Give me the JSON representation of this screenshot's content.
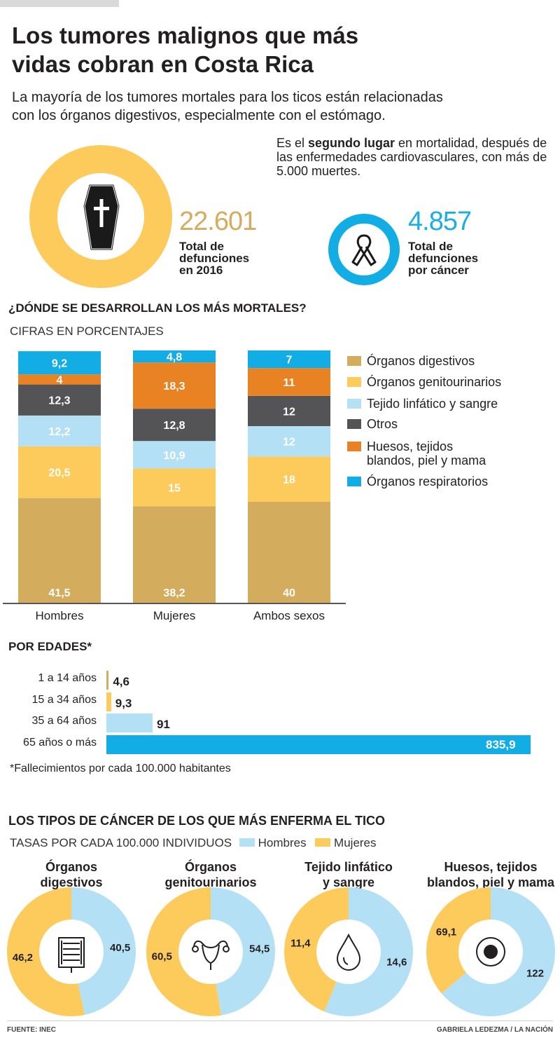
{
  "header": {
    "title_line1": "Los tumores malignos que más",
    "title_line2": "vidas cobran en Costa Rica",
    "subtitle_line1": "La mayoría de los tumores mortales para los ticos están relacionadas",
    "subtitle_line2": "con los órganos digestivos, especialmente con el estómago."
  },
  "summary": {
    "note_pre": "Es el ",
    "note_bold": "segundo lugar",
    "note_post": " en mortalidad, después de las enfermedades cardiovasculares, con más de 5.000 muertes.",
    "total_value": "22.601",
    "total_label_1": "Total de",
    "total_label_2": "defunciones",
    "total_label_3": "en 2016",
    "cancer_value": "4.857",
    "cancer_label_1": "Total de",
    "cancer_label_2": "defunciones",
    "cancer_label_3": "por cáncer",
    "coffin_icon": "coffin-cross-icon",
    "ribbon_icon": "awareness-ribbon-icon"
  },
  "colors": {
    "digestivos": "#d4ac5d",
    "genitourinarios": "#fdca5c",
    "linfatico": "#b4e0f5",
    "otros": "#545456",
    "huesos": "#e88223",
    "respiratorios": "#13ade6",
    "gold_text": "#d4ac5d",
    "blue_text": "#1aaee5"
  },
  "stacked": {
    "heading": "¿DÓNDE SE DESARROLLAN LOS MÁS MORTALES?",
    "subheading": "CIFRAS EN PORCENTAJES"
  },
  "ages": {
    "heading": "POR EDADES*",
    "footnote": "*Fallecimientos por cada 100.000 habitantes",
    "rows": [
      {
        "label": "1 a 14 años",
        "value": 4.6,
        "display": "4,6"
      },
      {
        "label": "15 a 34 años",
        "value": 9.3,
        "display": "9,3"
      },
      {
        "label": "35 a 64 años",
        "value": 91,
        "display": "91"
      },
      {
        "label": "65 años o más",
        "value": 835.9,
        "display": "835,9"
      }
    ]
  },
  "types": {
    "heading": "LOS TIPOS DE CÁNCER DE LOS QUE MÁS ENFERMA EL TICO",
    "subheading": "TASAS POR CADA 100.000 INDIVIDUOS",
    "legend_hombres": "Hombres",
    "legend_mujeres": "Mujeres"
  },
  "footer": {
    "source": "FUENTE: INEC",
    "credit": "GABRIELA LEDEZMA / LA NACIÓN"
  },
  "chart_data": [
    {
      "type": "stacked-bar",
      "title": "¿DÓNDE SE DESARROLLAN LOS MÁS MORTALES?",
      "unit": "CIFRAS EN PORCENTAJES",
      "categories": [
        "Hombres",
        "Mujeres",
        "Ambos sexos"
      ],
      "series": [
        {
          "key": "digestivos",
          "name": "Órganos digestivos",
          "values": [
            41.5,
            38.2,
            40
          ],
          "labels": [
            "41,5",
            "38,2",
            "40"
          ]
        },
        {
          "key": "genitourinarios",
          "name": "Órganos genitourinarios",
          "values": [
            20.5,
            15,
            18
          ],
          "labels": [
            "20,5",
            "15",
            "18"
          ]
        },
        {
          "key": "linfatico",
          "name": "Tejido linfático y sangre",
          "values": [
            12.2,
            10.9,
            12
          ],
          "labels": [
            "12,2",
            "10,9",
            "12"
          ]
        },
        {
          "key": "otros",
          "name": "Otros",
          "values": [
            12.3,
            12.8,
            12
          ],
          "labels": [
            "12,3",
            "12,8",
            "12"
          ]
        },
        {
          "key": "huesos",
          "name": "Huesos, tejidos blandos, piel y mama",
          "values": [
            4,
            18.3,
            11
          ],
          "labels": [
            "4",
            "18,3",
            "11"
          ]
        },
        {
          "key": "respiratorios",
          "name": "Órganos respiratorios",
          "values": [
            9.2,
            4.8,
            7
          ],
          "labels": [
            "9,2",
            "4,8",
            "7"
          ]
        }
      ],
      "legend_order": [
        "digestivos",
        "genitourinarios",
        "linfatico",
        "otros",
        "huesos",
        "respiratorios"
      ],
      "legend_labels": {
        "digestivos": [
          "Órganos digestivos"
        ],
        "genitourinarios": [
          "Órganos genitourinarios"
        ],
        "linfatico": [
          "Tejido linfático y sangre"
        ],
        "otros": [
          "Otros"
        ],
        "huesos": [
          "Huesos, tejidos",
          "blandos, piel y mama"
        ],
        "respiratorios": [
          "Órganos respiratorios"
        ]
      }
    },
    {
      "type": "bar",
      "orientation": "horizontal",
      "title": "POR EDADES*",
      "categories": [
        "1 a 14 años",
        "15 a 34 años",
        "35 a 64 años",
        "65 años o más"
      ],
      "values": [
        4.6,
        9.3,
        91,
        835.9
      ]
    },
    {
      "type": "pie",
      "title": "LOS TIPOS DE CÁNCER DE LOS QUE MÁS ENFERMA EL TICO",
      "unit": "TASAS POR CADA 100.000 INDIVIDUOS",
      "charts": [
        {
          "title": [
            "Órganos",
            "digestivos"
          ],
          "hombres": 40.5,
          "mujeres": 46.2,
          "hombres_label": "40,5",
          "mujeres_label": "46,2",
          "icon": "intestines-icon"
        },
        {
          "title": [
            "Órganos",
            "genitourinarios"
          ],
          "hombres": 54.5,
          "mujeres": 60.5,
          "hombres_label": "54,5",
          "mujeres_label": "60,5",
          "icon": "uterus-icon"
        },
        {
          "title": [
            "Tejido linfático",
            "y sangre"
          ],
          "hombres": 14.6,
          "mujeres": 11.4,
          "hombres_label": "14,6",
          "mujeres_label": "11,4",
          "icon": "blood-drop-icon"
        },
        {
          "title": [
            "Huesos, tejidos",
            "blandos, piel y mama"
          ],
          "hombres": 122,
          "mujeres": 69.1,
          "hombres_label": "122",
          "mujeres_label": "69,1",
          "icon": "target-icon"
        }
      ]
    }
  ]
}
